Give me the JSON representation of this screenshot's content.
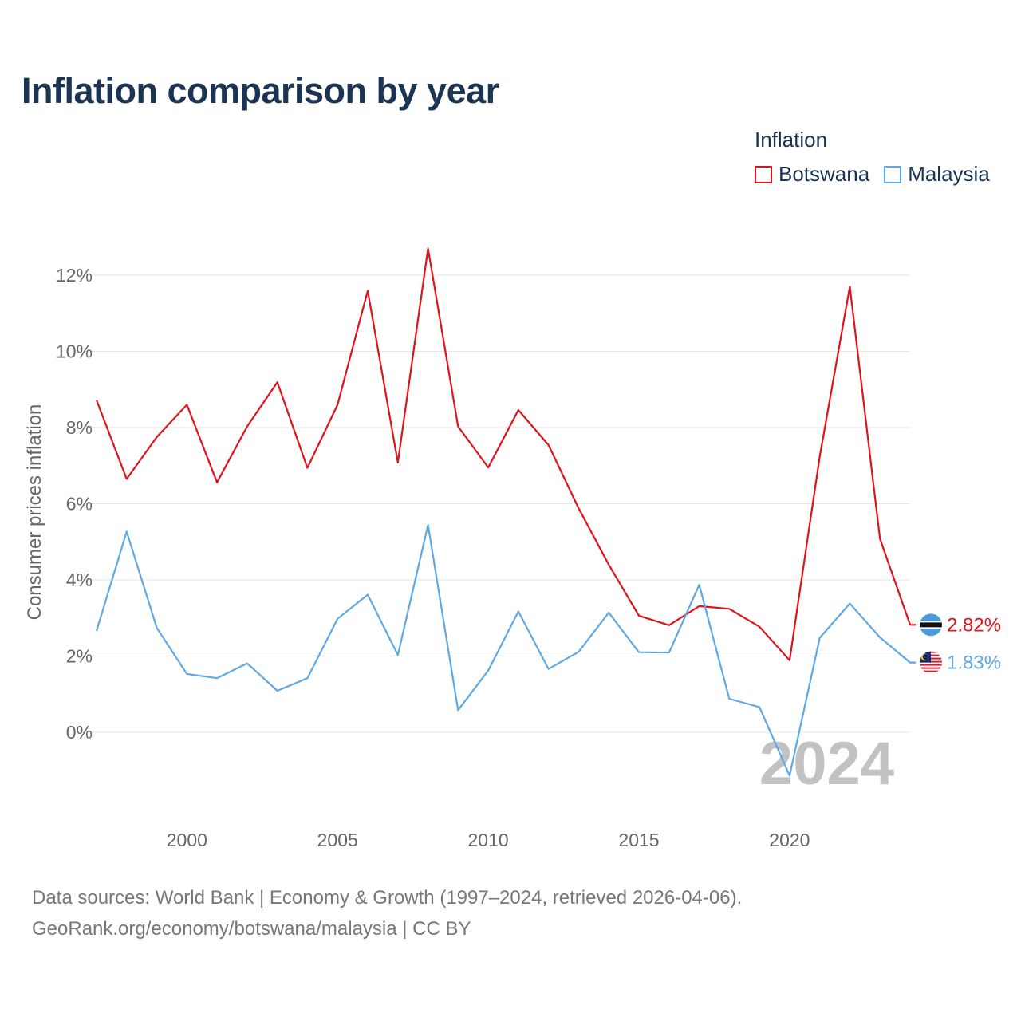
{
  "title": "Inflation comparison by year",
  "legend": {
    "title": "Inflation",
    "items": [
      {
        "label": "Botswana",
        "color": "#e0121d"
      },
      {
        "label": "Malaysia",
        "color": "#5fa8e4"
      }
    ]
  },
  "chart_data": {
    "type": "line",
    "title": "Inflation comparison by year",
    "xlabel": "",
    "ylabel": "Consumer prices inflation",
    "x": [
      1997,
      1998,
      1999,
      2000,
      2001,
      2002,
      2003,
      2004,
      2005,
      2006,
      2007,
      2008,
      2009,
      2010,
      2011,
      2012,
      2013,
      2014,
      2015,
      2016,
      2017,
      2018,
      2019,
      2020,
      2021,
      2022,
      2023,
      2024
    ],
    "xlim": [
      1997,
      2024
    ],
    "ylim": [
      -2,
      13
    ],
    "x_ticks": [
      2000,
      2005,
      2010,
      2015,
      2020
    ],
    "y_ticks": [
      0,
      2,
      4,
      6,
      8,
      10,
      12
    ],
    "y_tick_labels": [
      "0%",
      "2%",
      "4%",
      "6%",
      "8%",
      "10%",
      "12%"
    ],
    "grid": true,
    "series": [
      {
        "name": "Botswana",
        "color": "#e0121d",
        "end_label": "2.82%",
        "values": [
          8.72,
          6.65,
          7.75,
          8.6,
          6.56,
          8.03,
          9.19,
          6.94,
          8.6,
          11.59,
          7.08,
          12.7,
          8.03,
          6.95,
          8.46,
          7.54,
          5.88,
          4.4,
          3.06,
          2.81,
          3.31,
          3.24,
          2.77,
          1.89,
          7.24,
          11.7,
          5.08,
          2.82
        ]
      },
      {
        "name": "Malaysia",
        "color": "#5fa8e4",
        "end_label": "1.83%",
        "values": [
          2.66,
          5.27,
          2.74,
          1.53,
          1.42,
          1.81,
          1.09,
          1.42,
          2.98,
          3.61,
          2.03,
          5.44,
          0.58,
          1.62,
          3.17,
          1.66,
          2.11,
          3.14,
          2.1,
          2.09,
          3.87,
          0.88,
          0.66,
          -1.14,
          2.48,
          3.38,
          2.49,
          1.83
        ]
      }
    ]
  },
  "year_watermark": "2024",
  "source": {
    "line1": "Data sources: World Bank | Economy & Growth (1997–2024, retrieved 2026-04-06).",
    "line2": "GeoRank.org/economy/botswana/malaysia | CC BY"
  }
}
